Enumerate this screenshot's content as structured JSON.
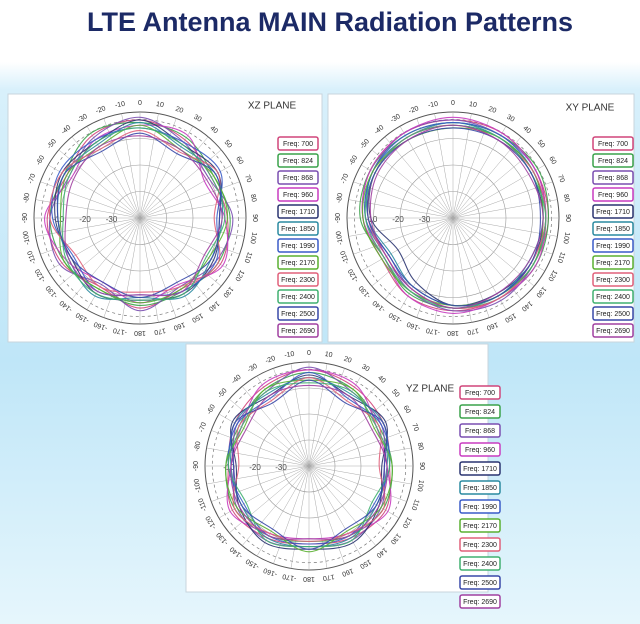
{
  "title": "LTE Antenna MAIN Radiation Patterns",
  "chart_data": [
    {
      "type": "polar",
      "title": "XZ PLANE",
      "theta": [
        0,
        30,
        60,
        90,
        120,
        150,
        180,
        -150,
        -120,
        -90,
        -60,
        -30
      ],
      "rlim": [
        -40,
        0
      ],
      "rticks": [
        -30,
        -20,
        -10
      ],
      "theta_ticks": [
        0,
        10,
        20,
        30,
        40,
        50,
        60,
        70,
        80,
        90,
        100,
        110,
        120,
        130,
        140,
        150,
        160,
        170,
        180,
        -170,
        -160,
        -150,
        -140,
        -130,
        -120,
        -110,
        -100,
        -90,
        -80,
        -70,
        -60,
        -50,
        -40,
        -30,
        -20,
        -10
      ],
      "series": [
        {
          "name": "Freq: 700",
          "color": "#d0457a",
          "values": [
            -3,
            -6,
            -9,
            -7,
            -5,
            -9,
            -6,
            -10,
            -6,
            -5,
            -8,
            -4
          ]
        },
        {
          "name": "Freq: 824",
          "color": "#3aa24a",
          "values": [
            -4,
            -5,
            -8,
            -6,
            -6,
            -8,
            -7,
            -9,
            -7,
            -6,
            -7,
            -3
          ]
        },
        {
          "name": "Freq: 868",
          "color": "#7a4fb0",
          "values": [
            -2,
            -7,
            -10,
            -5,
            -7,
            -10,
            -5,
            -11,
            -5,
            -6,
            -9,
            -5
          ]
        },
        {
          "name": "Freq: 960",
          "color": "#c83cc0",
          "values": [
            -5,
            -4,
            -12,
            -8,
            -4,
            -11,
            -8,
            -12,
            -8,
            -4,
            -10,
            -6
          ]
        },
        {
          "name": "Freq: 1710",
          "color": "#2a3470",
          "values": [
            -3,
            -8,
            -6,
            -10,
            -8,
            -7,
            -9,
            -7,
            -10,
            -8,
            -6,
            -7
          ]
        },
        {
          "name": "Freq: 1850",
          "color": "#2a8aa0",
          "values": [
            -4,
            -9,
            -7,
            -9,
            -9,
            -6,
            -10,
            -6,
            -9,
            -9,
            -7,
            -8
          ]
        },
        {
          "name": "Freq: 1990",
          "color": "#3a5cc8",
          "values": [
            -6,
            -7,
            -5,
            -11,
            -7,
            -8,
            -11,
            -8,
            -11,
            -7,
            -5,
            -6
          ]
        },
        {
          "name": "Freq: 2170",
          "color": "#5ab030",
          "values": [
            -5,
            -10,
            -8,
            -7,
            -10,
            -9,
            -8,
            -9,
            -7,
            -10,
            -8,
            -9
          ]
        },
        {
          "name": "Freq: 2300",
          "color": "#e0607a",
          "values": [
            -7,
            -11,
            -6,
            -12,
            -6,
            -10,
            -12,
            -10,
            -12,
            -6,
            -6,
            -10
          ]
        },
        {
          "name": "Freq: 2400",
          "color": "#40b070",
          "values": [
            -6,
            -8,
            -9,
            -8,
            -11,
            -7,
            -9,
            -7,
            -8,
            -11,
            -9,
            -7
          ]
        },
        {
          "name": "Freq: 2500",
          "color": "#3848a8",
          "values": [
            -8,
            -12,
            -7,
            -10,
            -9,
            -12,
            -10,
            -12,
            -10,
            -9,
            -7,
            -11
          ]
        },
        {
          "name": "Freq: 2690",
          "color": "#a040a0",
          "values": [
            -9,
            -10,
            -11,
            -9,
            -12,
            -8,
            -11,
            -8,
            -9,
            -12,
            -11,
            -9
          ]
        }
      ]
    },
    {
      "type": "polar",
      "title": "XY PLANE",
      "theta": [
        0,
        30,
        60,
        90,
        120,
        150,
        180,
        -150,
        -120,
        -90,
        -60,
        -30
      ],
      "rlim": [
        -40,
        0
      ],
      "rticks": [
        -30,
        -20,
        -10
      ],
      "theta_ticks": [
        0,
        10,
        20,
        30,
        40,
        50,
        60,
        70,
        80,
        90,
        100,
        110,
        120,
        130,
        140,
        150,
        160,
        170,
        180,
        -170,
        -160,
        -150,
        -140,
        -130,
        -120,
        -110,
        -100,
        -90,
        -80,
        -70,
        -60,
        -50,
        -40,
        -30,
        -20,
        -10
      ],
      "series": [
        {
          "name": "Freq: 700",
          "color": "#d0457a",
          "values": [
            -3,
            -3,
            -4,
            -4,
            -5,
            -5,
            -5,
            -6,
            -9,
            -6,
            -4,
            -3
          ]
        },
        {
          "name": "Freq: 824",
          "color": "#3aa24a",
          "values": [
            -4,
            -4,
            -3,
            -4,
            -4,
            -5,
            -6,
            -7,
            -10,
            -5,
            -4,
            -4
          ]
        },
        {
          "name": "Freq: 868",
          "color": "#7a4fb0",
          "values": [
            -3,
            -4,
            -4,
            -5,
            -5,
            -4,
            -5,
            -8,
            -11,
            -7,
            -5,
            -3
          ]
        },
        {
          "name": "Freq: 960",
          "color": "#c83cc0",
          "values": [
            -2,
            -3,
            -4,
            -5,
            -4,
            -5,
            -4,
            -6,
            -10,
            -6,
            -4,
            -3
          ]
        },
        {
          "name": "Freq: 1710",
          "color": "#2a3470",
          "values": [
            -5,
            -5,
            -6,
            -6,
            -6,
            -7,
            -7,
            -12,
            -16,
            -9,
            -6,
            -5
          ]
        },
        {
          "name": "Freq: 1850",
          "color": "#2a8aa0",
          "values": [
            -4,
            -5,
            -5,
            -6,
            -7,
            -6,
            -7,
            -10,
            -13,
            -8,
            -5,
            -5
          ]
        },
        {
          "name": "Freq: 1990",
          "color": "#3a5cc8",
          "values": [
            -4,
            -4,
            -5,
            -5,
            -6,
            -6,
            -6,
            -9,
            -12,
            -7,
            -5,
            -4
          ]
        },
        {
          "name": "Freq: 2170",
          "color": "#5ab030",
          "values": [
            -6,
            -5,
            -5,
            -6,
            -5,
            -6,
            -7,
            -8,
            -9,
            -6,
            -5,
            -6
          ]
        },
        {
          "name": "Freq: 2300",
          "color": "#e0607a",
          "values": [
            -5,
            -6,
            -5,
            -5,
            -6,
            -5,
            -6,
            -9,
            -11,
            -8,
            -6,
            -5
          ]
        },
        {
          "name": "Freq: 2400",
          "color": "#40b070",
          "values": [
            -5,
            -5,
            -6,
            -5,
            -5,
            -6,
            -6,
            -8,
            -10,
            -7,
            -6,
            -5
          ]
        },
        {
          "name": "Freq: 2500",
          "color": "#3848a8",
          "values": [
            -6,
            -6,
            -6,
            -7,
            -6,
            -6,
            -7,
            -10,
            -12,
            -8,
            -6,
            -6
          ]
        },
        {
          "name": "Freq: 2690",
          "color": "#a040a0",
          "values": [
            -5,
            -6,
            -7,
            -6,
            -7,
            -7,
            -6,
            -9,
            -11,
            -9,
            -7,
            -6
          ]
        }
      ]
    },
    {
      "type": "polar",
      "title": "YZ PLANE",
      "theta": [
        0,
        30,
        60,
        90,
        120,
        150,
        180,
        -150,
        -120,
        -90,
        -60,
        -30
      ],
      "rlim": [
        -40,
        0
      ],
      "rticks": [
        -30,
        -20,
        -10
      ],
      "theta_ticks": [
        0,
        10,
        20,
        30,
        40,
        50,
        60,
        70,
        80,
        90,
        100,
        110,
        120,
        130,
        140,
        150,
        160,
        170,
        180,
        -170,
        -160,
        -150,
        -140,
        -130,
        -120,
        -110,
        -100,
        -90,
        -80,
        -70,
        -60,
        -50,
        -40,
        -30,
        -20,
        -10
      ],
      "series": [
        {
          "name": "Freq: 700",
          "color": "#d0457a",
          "values": [
            -3,
            -5,
            -7,
            -9,
            -6,
            -8,
            -10,
            -8,
            -6,
            -9,
            -7,
            -5
          ]
        },
        {
          "name": "Freq: 824",
          "color": "#3aa24a",
          "values": [
            -4,
            -6,
            -9,
            -8,
            -7,
            -9,
            -11,
            -9,
            -7,
            -8,
            -9,
            -6
          ]
        },
        {
          "name": "Freq: 868",
          "color": "#7a4fb0",
          "values": [
            -2,
            -7,
            -8,
            -11,
            -8,
            -7,
            -9,
            -7,
            -8,
            -11,
            -8,
            -7
          ]
        },
        {
          "name": "Freq: 960",
          "color": "#c83cc0",
          "values": [
            -3,
            -4,
            -10,
            -10,
            -5,
            -10,
            -12,
            -10,
            -5,
            -10,
            -10,
            -4
          ]
        },
        {
          "name": "Freq: 1710",
          "color": "#2a3470",
          "values": [
            -5,
            -9,
            -6,
            -12,
            -9,
            -6,
            -8,
            -6,
            -9,
            -12,
            -6,
            -9
          ]
        },
        {
          "name": "Freq: 1850",
          "color": "#2a8aa0",
          "values": [
            -6,
            -8,
            -7,
            -10,
            -10,
            -8,
            -9,
            -8,
            -10,
            -10,
            -7,
            -8
          ]
        },
        {
          "name": "Freq: 1990",
          "color": "#3a5cc8",
          "values": [
            -4,
            -10,
            -8,
            -9,
            -11,
            -9,
            -10,
            -9,
            -11,
            -9,
            -8,
            -10
          ]
        },
        {
          "name": "Freq: 2170",
          "color": "#5ab030",
          "values": [
            -7,
            -6,
            -11,
            -8,
            -8,
            -11,
            -7,
            -11,
            -8,
            -8,
            -11,
            -6
          ]
        },
        {
          "name": "Freq: 2300",
          "color": "#e0607a",
          "values": [
            -6,
            -11,
            -9,
            -13,
            -7,
            -10,
            -11,
            -10,
            -7,
            -13,
            -9,
            -11
          ]
        },
        {
          "name": "Freq: 2400",
          "color": "#40b070",
          "values": [
            -8,
            -7,
            -10,
            -9,
            -12,
            -7,
            -9,
            -7,
            -12,
            -9,
            -10,
            -7
          ]
        },
        {
          "name": "Freq: 2500",
          "color": "#3848a8",
          "values": [
            -7,
            -12,
            -7,
            -11,
            -10,
            -12,
            -8,
            -12,
            -10,
            -11,
            -7,
            -12
          ]
        },
        {
          "name": "Freq: 2690",
          "color": "#a040a0",
          "values": [
            -9,
            -9,
            -12,
            -10,
            -9,
            -9,
            -12,
            -9,
            -9,
            -10,
            -12,
            -9
          ]
        }
      ]
    }
  ]
}
